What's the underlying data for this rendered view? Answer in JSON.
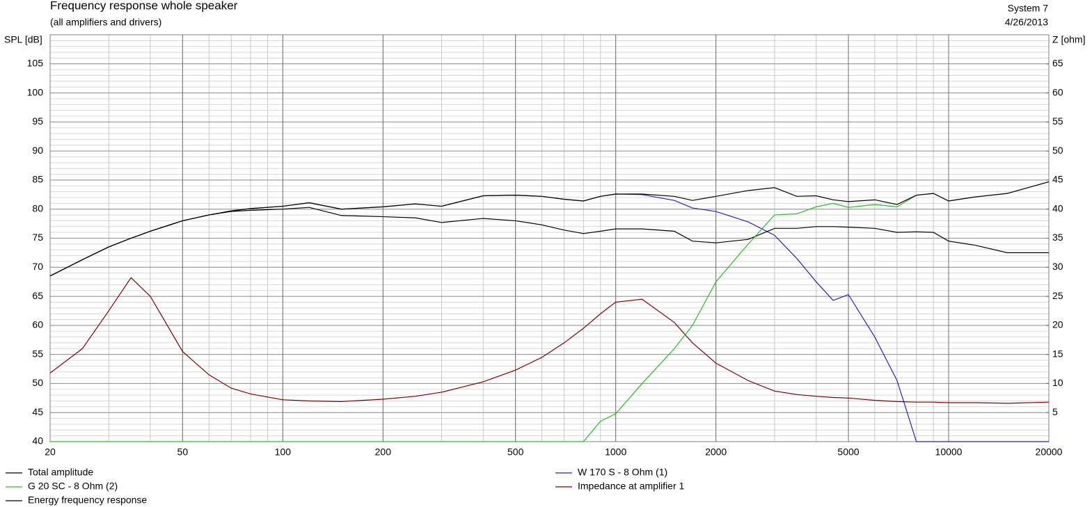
{
  "chart_data": {
    "type": "line",
    "title": "Frequency response whole speaker",
    "subtitle": "(all amplifiers and drivers)",
    "note_top": "System 7",
    "note_date": "4/26/2013",
    "ylabel": "SPL [dB]",
    "y2label": "Z [ohm]",
    "xscale": "log",
    "grid": true,
    "x": [
      20,
      25,
      30,
      35,
      40,
      50,
      60,
      70,
      80,
      100,
      120,
      150,
      200,
      250,
      300,
      400,
      500,
      600,
      700,
      800,
      900,
      1000,
      1200,
      1500,
      1700,
      2000,
      2500,
      3000,
      3500,
      4000,
      4500,
      5000,
      6000,
      7000,
      8000,
      9000,
      10000,
      12000,
      15000,
      20000
    ],
    "xlim": [
      20,
      20000
    ],
    "xticks": [
      20,
      50,
      100,
      200,
      500,
      1000,
      2000,
      5000,
      10000,
      20000
    ],
    "ylim": [
      40,
      110
    ],
    "yticks": [
      40,
      45,
      50,
      55,
      60,
      65,
      70,
      75,
      80,
      85,
      90,
      95,
      100,
      105
    ],
    "y2lim": [
      0,
      70
    ],
    "y2ticks": [
      5,
      10,
      15,
      20,
      25,
      30,
      35,
      40,
      45,
      50,
      55,
      60,
      65
    ],
    "series": [
      {
        "name": "Total amplitude",
        "color": "#000000",
        "values": [
          68.5,
          71.3,
          73.5,
          75,
          76.2,
          78,
          79,
          79.7,
          80.1,
          80.5,
          81.1,
          80,
          80.4,
          80.9,
          80.5,
          82.3,
          82.4,
          82.2,
          81.7,
          81.4,
          82.2,
          82.6,
          82.6,
          82.2,
          81.5,
          82.2,
          83.2,
          83.7,
          82.2,
          82.3,
          81.6,
          81.3,
          81.6,
          80.8,
          82.4,
          82.7,
          81.4,
          82.1,
          82.7,
          84.7
        ]
      },
      {
        "name": "G 20 SC - 8 Ohm (2)",
        "color": "#22c022",
        "values": [
          40,
          40,
          40,
          40,
          40,
          40,
          40,
          40,
          40,
          40,
          40,
          40,
          40,
          40,
          40,
          40,
          40,
          40,
          40,
          40,
          43.5,
          44.8,
          50,
          56,
          60,
          67.5,
          74,
          79,
          79.2,
          80.4,
          81,
          80.3,
          80.8,
          80.4,
          82.4,
          82.7,
          81.4,
          82.1,
          82.7,
          84.7
        ]
      },
      {
        "name": "Energy frequency response",
        "color": "#000000",
        "values": [
          68.5,
          71.3,
          73.5,
          75,
          76.2,
          78,
          79,
          79.6,
          79.8,
          80,
          80.3,
          78.9,
          78.7,
          78.5,
          77.7,
          78.4,
          78,
          77.3,
          76.4,
          75.8,
          76.2,
          76.6,
          76.6,
          76.2,
          74.5,
          74.2,
          74.8,
          76.7,
          76.7,
          77,
          77,
          76.9,
          76.7,
          76,
          76.1,
          76,
          74.5,
          73.8,
          72.5,
          72.5
        ]
      },
      {
        "name": "W 170 S - 8 Ohm (1)",
        "color": "#2222c0",
        "values": [
          68.5,
          71.3,
          73.5,
          75,
          76.2,
          78,
          79,
          79.7,
          80.1,
          80.5,
          81.1,
          80,
          80.4,
          80.9,
          80.5,
          82.3,
          82.4,
          82.2,
          81.7,
          81.4,
          82.2,
          82.6,
          82.5,
          81.5,
          80.2,
          79.6,
          77.8,
          75.5,
          71.5,
          67.5,
          64.3,
          65.3,
          58,
          50.5,
          40,
          40,
          40,
          40,
          40,
          40
        ]
      },
      {
        "name": "Impedance at amplifier 1",
        "color": "#800000",
        "axis": "y2",
        "values": [
          11.8,
          16,
          22.5,
          28.2,
          25,
          15.5,
          11.5,
          9.2,
          8.2,
          7.2,
          7,
          6.9,
          7.3,
          7.8,
          8.5,
          10.3,
          12.3,
          14.5,
          17,
          19.5,
          22,
          24,
          24.5,
          20.5,
          17,
          13.5,
          10.5,
          8.7,
          8.1,
          7.8,
          7.6,
          7.5,
          7.1,
          6.9,
          6.8,
          6.8,
          6.7,
          6.7,
          6.6,
          6.8
        ]
      }
    ]
  }
}
